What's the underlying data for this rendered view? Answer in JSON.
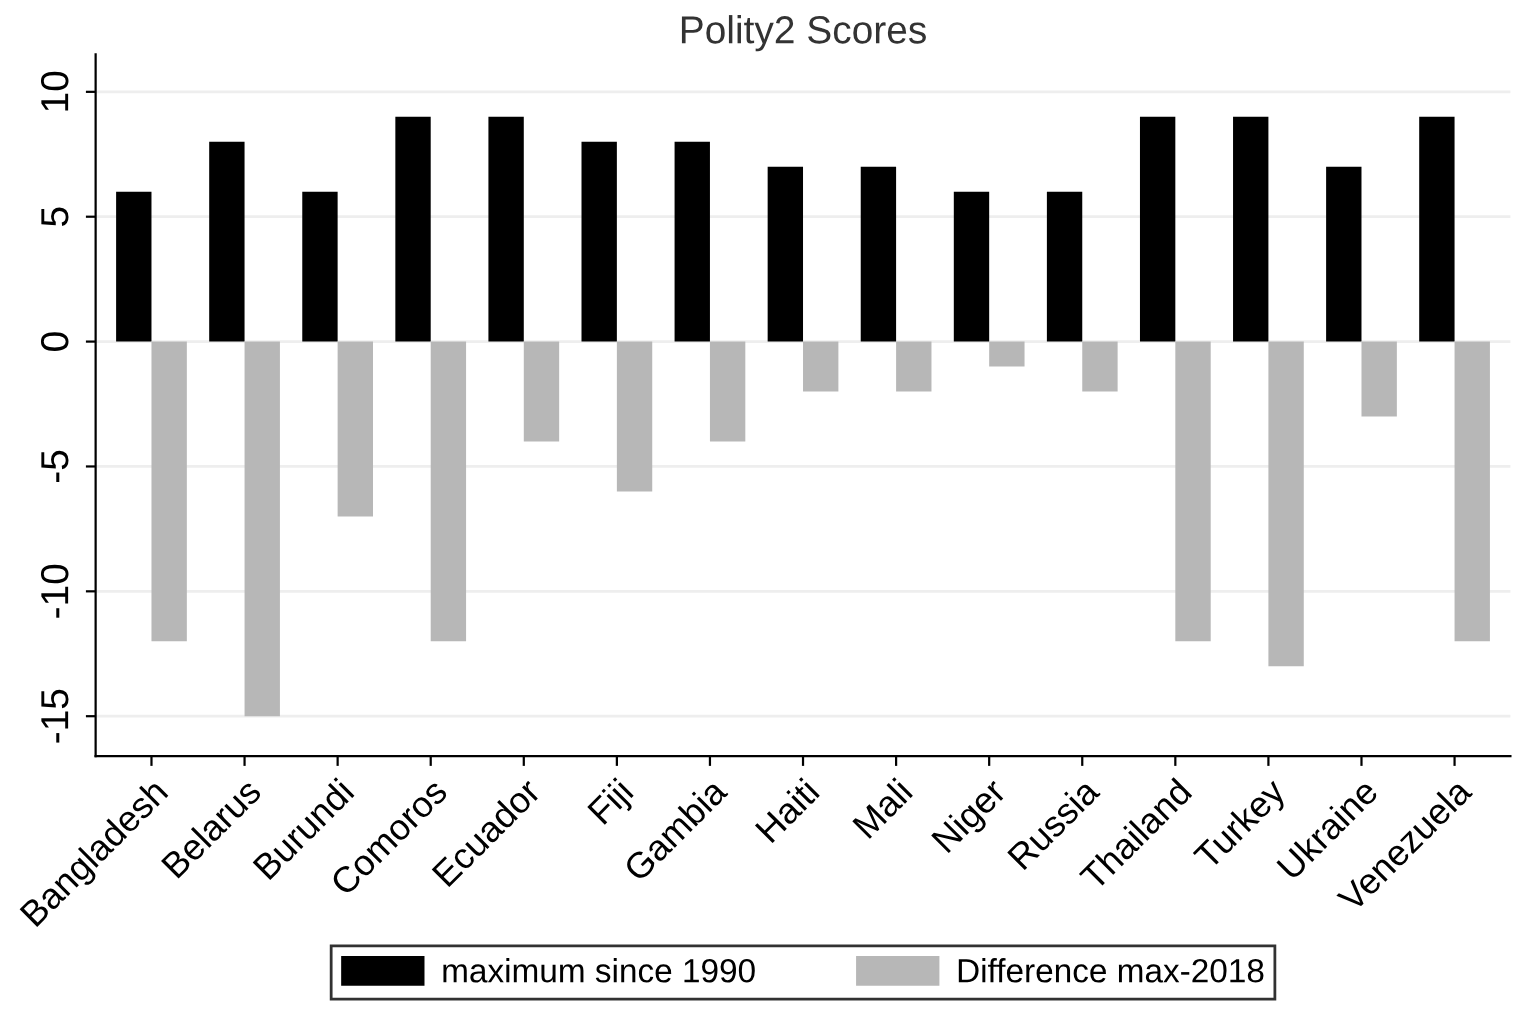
{
  "chart_data": {
    "type": "bar",
    "title": "Polity2 Scores",
    "categories": [
      "Bangladesh",
      "Belarus",
      "Burundi",
      "Comoros",
      "Ecuador",
      "Fiji",
      "Gambia",
      "Haiti",
      "Mali",
      "Niger",
      "Russia",
      "Thailand",
      "Turkey",
      "Ukraine",
      "Venezuela"
    ],
    "series": [
      {
        "name": "maximum since 1990",
        "color": "#000000",
        "values": [
          6,
          8,
          6,
          9,
          9,
          8,
          8,
          7,
          7,
          6,
          6,
          9,
          9,
          7,
          9
        ]
      },
      {
        "name": "Difference max-2018",
        "color": "#b7b7b7",
        "values": [
          -12,
          -15,
          -7,
          -12,
          -4,
          -6,
          -4,
          -2,
          -2,
          -1,
          -2,
          -12,
          -13,
          -3,
          -12
        ]
      }
    ],
    "ylim": [
      -16.6,
      11.5
    ],
    "yticks": [
      -15,
      -10,
      -5,
      0,
      5,
      10
    ],
    "grid": "y",
    "legend": "bottom"
  }
}
